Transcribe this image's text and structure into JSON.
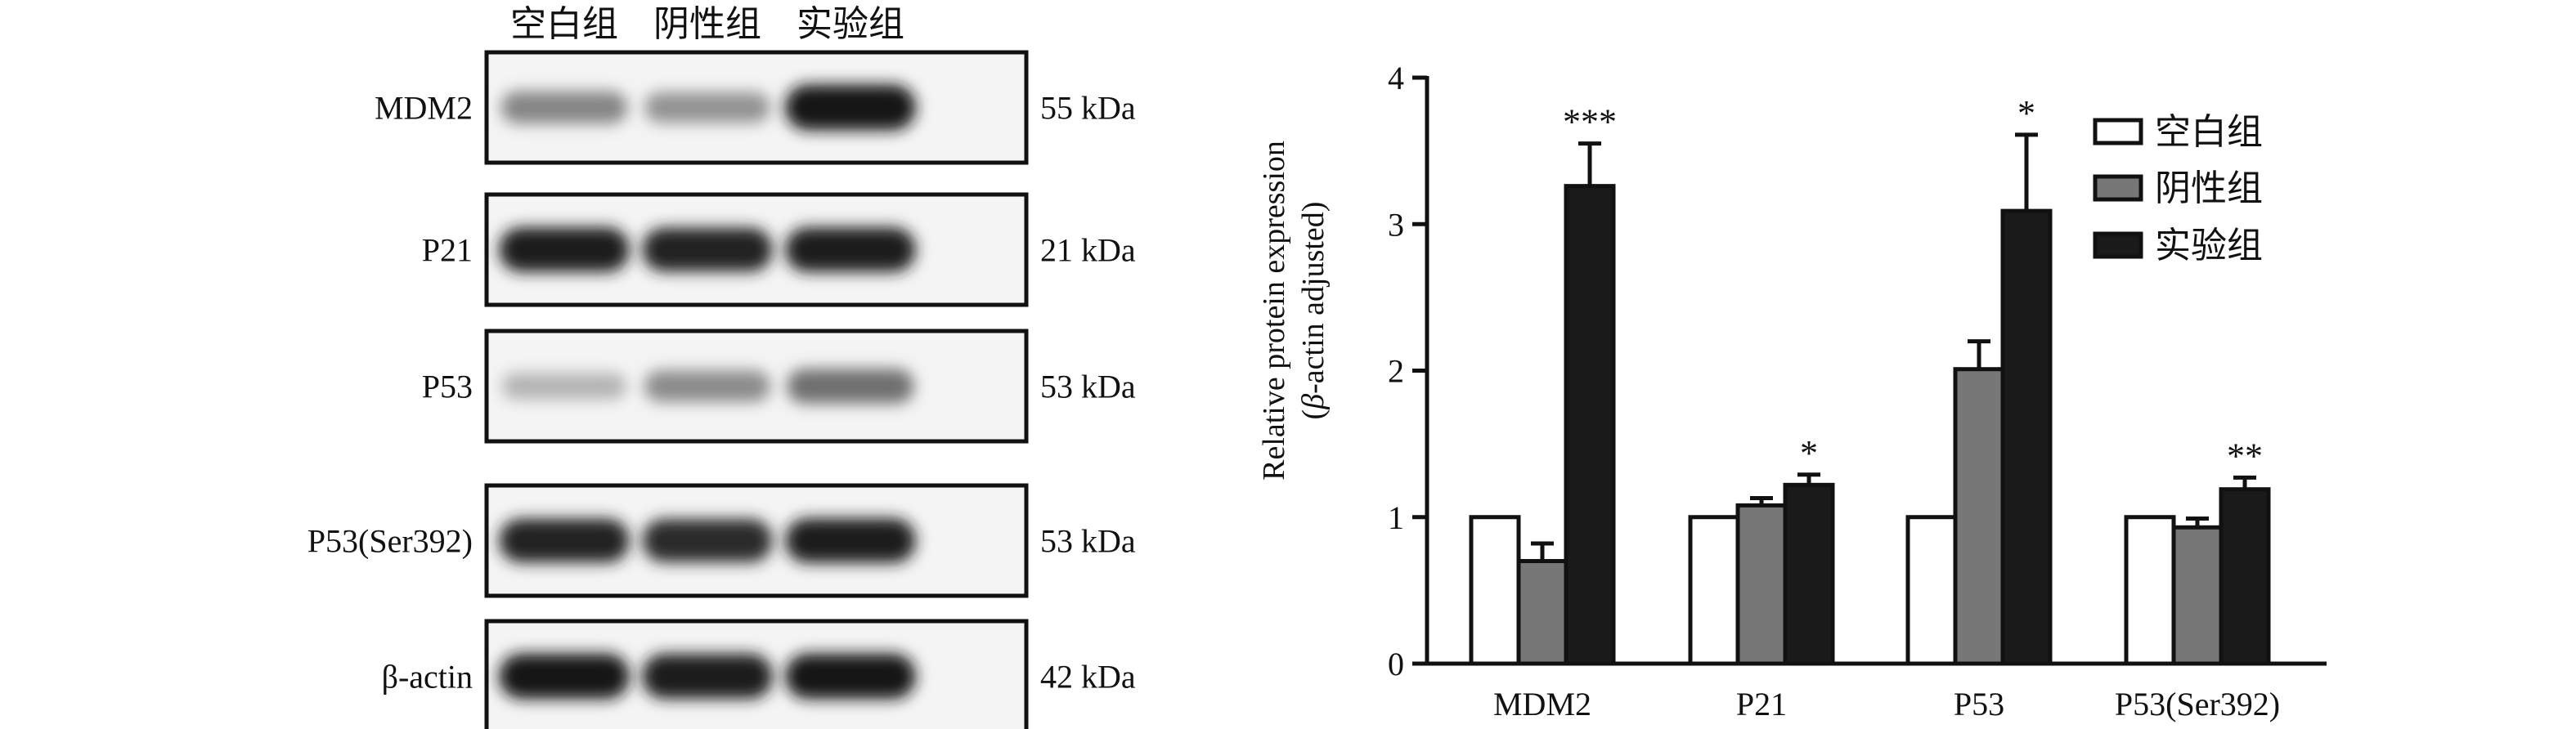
{
  "blot": {
    "group_labels": [
      "空白组",
      "阴性组",
      "实验组"
    ],
    "rows": [
      {
        "protein": "MDM2",
        "size": "55 kDa",
        "band_intensity": [
          0.45,
          0.38,
          1.0
        ]
      },
      {
        "protein": "P21",
        "size": "21 kDa",
        "band_intensity": [
          0.95,
          0.92,
          0.95
        ]
      },
      {
        "protein": "P53",
        "size": "53 kDa",
        "band_intensity": [
          0.22,
          0.42,
          0.55
        ]
      },
      {
        "protein": "P53(Ser392)",
        "size": "53 kDa",
        "band_intensity": [
          0.92,
          0.9,
          0.95
        ]
      },
      {
        "protein": "β-actin",
        "size": "42 kDa",
        "band_intensity": [
          0.98,
          0.97,
          0.98
        ]
      }
    ]
  },
  "chart_data": {
    "type": "bar",
    "categories": [
      "MDM2",
      "P21",
      "P53",
      "P53(Ser392)"
    ],
    "ylabel_line1": "Relative protein expression",
    "ylabel_line2_pre": "(",
    "ylabel_line2_greek": "β",
    "ylabel_line2_post": "-actin adjusted)",
    "ylim": [
      0,
      4
    ],
    "yticks": [
      "0",
      "1",
      "2",
      "3",
      "4"
    ],
    "legend_position": "top-right",
    "series": [
      {
        "name": "空白组",
        "values": [
          1.0,
          1.0,
          1.0,
          1.0
        ],
        "errors": [
          0,
          0,
          0,
          0
        ],
        "color": "#ffffff"
      },
      {
        "name": "阴性组",
        "values": [
          0.7,
          1.08,
          2.01,
          0.93
        ],
        "errors": [
          0.12,
          0.05,
          0.19,
          0.06
        ],
        "color": "#777777"
      },
      {
        "name": "实验组",
        "values": [
          3.26,
          1.22,
          3.09,
          1.19
        ],
        "errors": [
          0.29,
          0.07,
          0.52,
          0.08
        ],
        "color": "#1a1a1a"
      }
    ],
    "annotations": [
      "***",
      "*",
      "*",
      "**"
    ]
  }
}
